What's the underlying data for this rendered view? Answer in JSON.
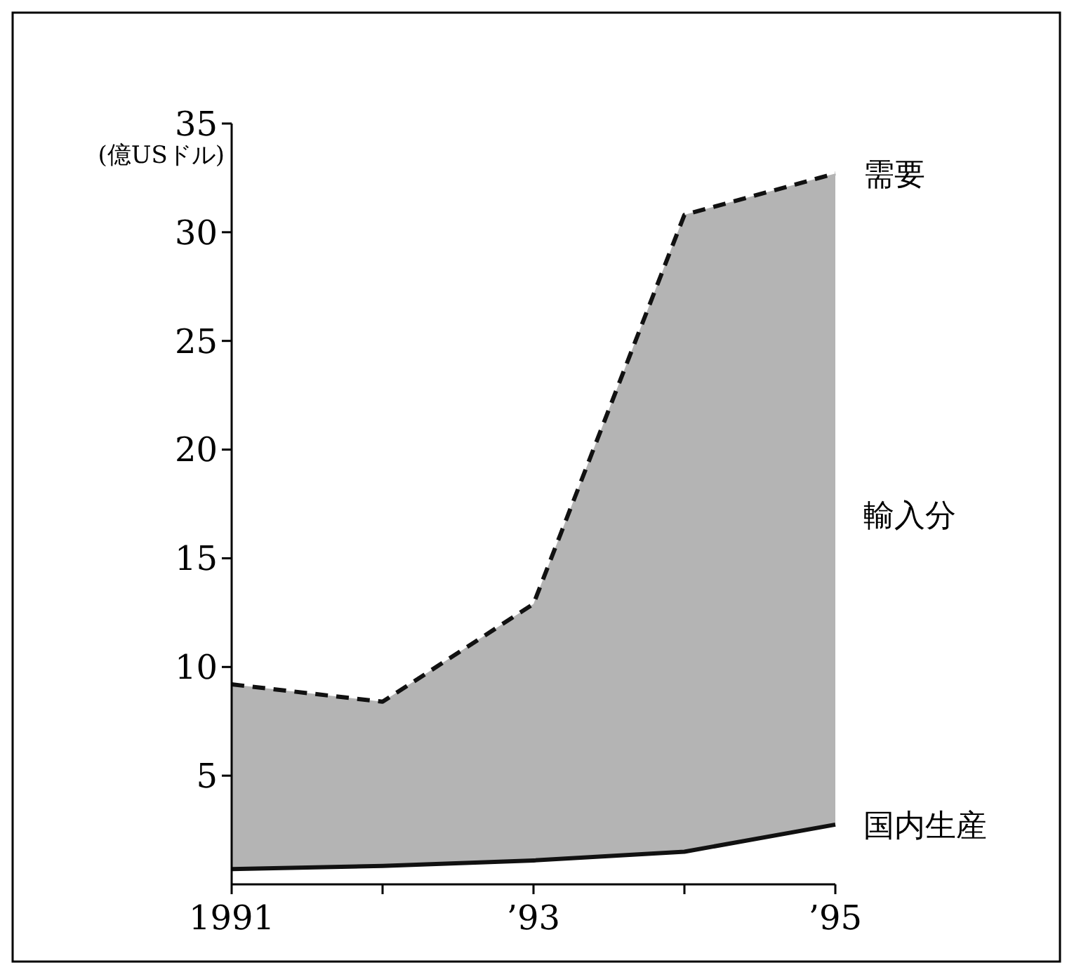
{
  "chart_data": {
    "type": "line",
    "ylabel": "(億USドル)",
    "x": [
      1991,
      1992,
      1993,
      1994,
      1995
    ],
    "xlim": [
      1991,
      1995
    ],
    "xticks": [
      {
        "value": 1991,
        "label": "1991"
      },
      {
        "value": 1992,
        "label": null
      },
      {
        "value": 1993,
        "label": "’93"
      },
      {
        "value": 1994,
        "label": null
      },
      {
        "value": 1995,
        "label": "’95"
      }
    ],
    "ylim": [
      0,
      35
    ],
    "yticks": [
      5,
      10,
      15,
      20,
      25,
      30,
      35
    ],
    "series": [
      {
        "name": "需要",
        "color": "#111111",
        "line_style": "dashed",
        "values": [
          9.2,
          8.4,
          12.9,
          30.8,
          32.7
        ],
        "lower": [
          0.7,
          0.85,
          1.1,
          1.5,
          2.75
        ],
        "upper": [
          9.2,
          8.4,
          12.9,
          30.8,
          32.7
        ]
      },
      {
        "name": "国内生産",
        "color": "#111111",
        "line_style": "solid",
        "values": [
          0.7,
          0.85,
          1.1,
          1.5,
          2.75
        ]
      }
    ],
    "annotations": [
      {
        "text": "輸入分",
        "x": 1995,
        "y": 17
      }
    ]
  }
}
